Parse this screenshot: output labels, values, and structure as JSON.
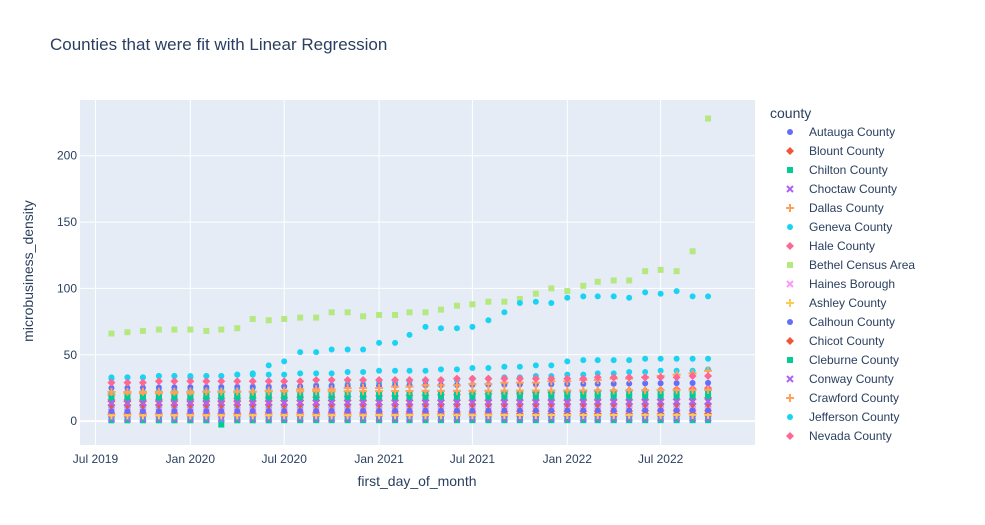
{
  "chart_data": {
    "type": "scatter",
    "title": "Counties that were fit with Linear Regression",
    "xlabel": "first_day_of_month",
    "ylabel": "microbusiness_density",
    "x_range": [
      "2019-06-01",
      "2022-12-31"
    ],
    "ylim": [
      -18,
      242
    ],
    "x_ticks": [
      {
        "date": "2019-07-01",
        "label": "Jul 2019"
      },
      {
        "date": "2020-01-01",
        "label": "Jan 2020"
      },
      {
        "date": "2020-07-01",
        "label": "Jul 2020"
      },
      {
        "date": "2021-01-01",
        "label": "Jan 2021"
      },
      {
        "date": "2021-07-01",
        "label": "Jul 2021"
      },
      {
        "date": "2022-01-01",
        "label": "Jan 2022"
      },
      {
        "date": "2022-07-01",
        "label": "Jul 2022"
      }
    ],
    "y_ticks": [
      0,
      50,
      100,
      150,
      200
    ],
    "grid": true,
    "background": "#e5ecf6",
    "legend": {
      "title": "county",
      "placement": "right"
    },
    "x": [
      "2019-08-01",
      "2019-09-01",
      "2019-10-01",
      "2019-11-01",
      "2019-12-01",
      "2020-01-01",
      "2020-02-01",
      "2020-03-01",
      "2020-04-01",
      "2020-05-01",
      "2020-06-01",
      "2020-07-01",
      "2020-08-01",
      "2020-09-01",
      "2020-10-01",
      "2020-11-01",
      "2020-12-01",
      "2021-01-01",
      "2021-02-01",
      "2021-03-01",
      "2021-04-01",
      "2021-05-01",
      "2021-06-01",
      "2021-07-01",
      "2021-08-01",
      "2021-09-01",
      "2021-10-01",
      "2021-11-01",
      "2021-12-01",
      "2022-01-01",
      "2022-02-01",
      "2022-03-01",
      "2022-04-01",
      "2022-05-01",
      "2022-06-01",
      "2022-07-01",
      "2022-08-01",
      "2022-09-01",
      "2022-10-01"
    ],
    "series": [
      {
        "name": "Autauga County",
        "color": "#636efa",
        "symbol": "circle",
        "values": [
          3.0,
          2.9,
          3.0,
          2.9,
          3.0,
          2.9,
          2.9,
          3.0,
          3.0,
          3.1,
          3.1,
          3.2,
          3.3,
          3.3,
          3.3,
          3.3,
          3.3,
          3.4,
          3.4,
          3.4,
          3.4,
          3.4,
          3.4,
          3.4,
          3.4,
          3.4,
          3.4,
          3.4,
          3.4,
          3.4,
          3.4,
          3.4,
          3.4,
          3.4,
          3.5,
          3.5,
          3.5,
          3.5,
          3.5
        ]
      },
      {
        "name": "Blount County",
        "color": "#ef553b",
        "symbol": "diamond",
        "values": [
          15.0,
          15.0,
          15.0,
          15.2,
          15.2,
          15.0,
          15.0,
          14.9,
          15.0,
          15.2,
          15.2,
          15.4,
          15.4,
          15.5,
          15.5,
          15.5,
          15.5,
          15.6,
          15.6,
          15.6,
          15.6,
          15.6,
          15.7,
          15.7,
          15.7,
          15.7,
          15.8,
          15.8,
          15.8,
          15.8,
          15.9,
          16.0,
          16.0,
          16.0,
          16.1,
          16.2,
          16.4,
          16.5,
          17.5
        ]
      },
      {
        "name": "Chilton County",
        "color": "#00cc96",
        "symbol": "square",
        "values": [
          0.6,
          0.6,
          0.6,
          0.6,
          0.6,
          0.6,
          0.6,
          -2.6,
          0.6,
          0.6,
          0.6,
          0.7,
          0.7,
          0.7,
          0.7,
          0.7,
          0.7,
          0.7,
          0.7,
          0.7,
          0.7,
          0.7,
          0.7,
          0.7,
          0.7,
          0.7,
          0.7,
          0.7,
          0.7,
          0.7,
          0.7,
          0.7,
          0.7,
          0.7,
          0.7,
          0.7,
          0.7,
          0.7,
          0.7
        ]
      },
      {
        "name": "Choctaw County",
        "color": "#ab63fa",
        "symbol": "x",
        "values": [
          1.8,
          1.8,
          1.8,
          1.8,
          1.8,
          1.8,
          1.8,
          1.8,
          1.8,
          1.8,
          1.9,
          1.9,
          1.9,
          1.9,
          1.9,
          1.9,
          1.9,
          1.9,
          1.9,
          1.9,
          2.0,
          2.0,
          2.0,
          2.0,
          2.0,
          2.0,
          2.0,
          2.0,
          2.0,
          2.0,
          2.0,
          2.0,
          2.0,
          2.1,
          2.1,
          2.1,
          2.1,
          2.1,
          2.1
        ]
      },
      {
        "name": "Dallas County",
        "color": "#ffa15a",
        "symbol": "cross",
        "values": [
          20,
          21,
          21,
          21,
          21,
          21,
          22,
          22,
          22,
          22,
          23,
          23,
          24,
          24,
          24,
          25,
          25,
          25,
          26,
          26,
          27,
          27,
          27,
          28,
          28,
          29,
          29,
          29,
          30,
          30,
          31,
          31,
          32,
          32,
          33,
          34,
          35,
          36,
          38
        ]
      },
      {
        "name": "Geneva County",
        "color": "#19d3f3",
        "symbol": "circle",
        "values": [
          9.5,
          9.5,
          9.5,
          9.6,
          9.6,
          9.6,
          9.6,
          9.6,
          9.7,
          9.7,
          9.8,
          9.8,
          9.9,
          9.9,
          10.0,
          10.0,
          10.0,
          10.1,
          10.1,
          10.1,
          10.2,
          10.2,
          10.2,
          10.3,
          10.3,
          10.3,
          10.4,
          10.4,
          10.4,
          10.5,
          10.5,
          10.5,
          10.6,
          10.6,
          10.6,
          10.7,
          10.7,
          10.7,
          10.8
        ]
      },
      {
        "name": "Hale County",
        "color": "#ff6692",
        "symbol": "diamond",
        "values": [
          6,
          6,
          6,
          6,
          6,
          6,
          6,
          6,
          6,
          6,
          6.5,
          6.5,
          6.5,
          6.5,
          6.5,
          6.5,
          6.5,
          7,
          7,
          7,
          7,
          7,
          7,
          7,
          7,
          7,
          7.5,
          7.5,
          7.5,
          7.5,
          7.5,
          7.5,
          7.5,
          7.5,
          8,
          8,
          8,
          8,
          8
        ]
      },
      {
        "name": "Bethel Census Area",
        "color": "#b6e880",
        "symbol": "square",
        "values": [
          66,
          67,
          68,
          69,
          69,
          69,
          68,
          69,
          70,
          77,
          76,
          77,
          78,
          78,
          82,
          82,
          79,
          80,
          80,
          82,
          82,
          84,
          87,
          88,
          90,
          90,
          92,
          96,
          100,
          98,
          102,
          105,
          106,
          106,
          113,
          114,
          113,
          128,
          228
        ]
      },
      {
        "name": "Haines Borough",
        "color": "#ff97ff",
        "symbol": "x",
        "values": [
          10.5,
          10.5,
          10.5,
          10.6,
          10.6,
          10.6,
          10.6,
          10.7,
          10.7,
          10.7,
          10.8,
          10.8,
          10.8,
          10.9,
          10.9,
          10.9,
          11.0,
          11.0,
          11.0,
          11.1,
          11.1,
          11.1,
          11.2,
          11.2,
          11.2,
          11.3,
          11.3,
          11.3,
          11.4,
          11.4,
          11.4,
          11.5,
          11.5,
          11.5,
          11.6,
          11.6,
          11.6,
          11.7,
          11.7
        ]
      },
      {
        "name": "Ashley County",
        "color": "#fecb52",
        "symbol": "cross",
        "values": [
          4.3,
          4.3,
          4.3,
          4.3,
          4.3,
          4.3,
          4.3,
          4.3,
          4.3,
          4.4,
          4.4,
          4.4,
          4.4,
          4.4,
          4.4,
          4.4,
          4.4,
          4.5,
          4.5,
          4.5,
          4.5,
          4.5,
          4.5,
          4.5,
          4.5,
          4.6,
          4.6,
          4.6,
          4.6,
          4.6,
          4.6,
          4.6,
          4.6,
          4.7,
          4.7,
          4.7,
          4.7,
          4.7,
          4.7
        ]
      },
      {
        "name": "Calhoun County",
        "color": "#636efa",
        "symbol": "circle",
        "values": [
          7.5,
          7.5,
          7.5,
          7.5,
          7.6,
          7.6,
          7.6,
          7.6,
          7.6,
          7.7,
          7.7,
          7.7,
          7.7,
          7.7,
          7.8,
          7.8,
          7.8,
          7.8,
          7.8,
          7.9,
          7.9,
          7.9,
          7.9,
          7.9,
          8.0,
          8.0,
          8.0,
          8.0,
          8.0,
          8.1,
          8.1,
          8.1,
          8.1,
          8.1,
          8.2,
          8.2,
          8.2,
          8.2,
          8.2
        ]
      },
      {
        "name": "Chicot County",
        "color": "#ef553b",
        "symbol": "diamond",
        "values": [
          12.0,
          12.0,
          12.0,
          12.1,
          12.1,
          12.1,
          12.1,
          12.1,
          12.2,
          12.2,
          12.2,
          12.2,
          12.3,
          12.3,
          12.3,
          12.3,
          12.4,
          12.4,
          12.4,
          12.4,
          12.5,
          12.5,
          12.5,
          12.5,
          12.6,
          12.6,
          12.6,
          12.6,
          12.7,
          12.7,
          12.7,
          12.7,
          12.8,
          12.8,
          12.8,
          12.8,
          12.9,
          12.9,
          12.9
        ]
      },
      {
        "name": "Cleburne County",
        "color": "#00cc96",
        "symbol": "square",
        "values": [
          17.5,
          17.5,
          17.5,
          17.6,
          17.6,
          17.6,
          17.6,
          17.7,
          17.7,
          17.7,
          17.8,
          17.8,
          17.8,
          17.9,
          17.9,
          17.9,
          18.0,
          18.0,
          18.0,
          18.1,
          18.1,
          18.1,
          18.2,
          18.2,
          18.2,
          18.3,
          18.3,
          18.3,
          18.4,
          18.4,
          18.4,
          18.5,
          18.5,
          18.5,
          18.6,
          18.6,
          18.6,
          18.7,
          18.7
        ]
      },
      {
        "name": "Conway County",
        "color": "#ab63fa",
        "symbol": "x",
        "values": [
          13.5,
          13.5,
          13.5,
          13.6,
          13.6,
          13.6,
          13.6,
          13.7,
          13.7,
          13.7,
          13.8,
          13.8,
          13.8,
          13.9,
          13.9,
          13.9,
          14.0,
          14.0,
          14.0,
          14.1,
          14.1,
          14.1,
          14.2,
          14.2,
          14.2,
          14.3,
          14.3,
          14.3,
          14.4,
          14.4,
          14.4,
          14.5,
          14.5,
          14.5,
          14.6,
          14.6,
          14.6,
          14.7,
          14.7
        ]
      },
      {
        "name": "Crawford County",
        "color": "#ffa15a",
        "symbol": "cross",
        "values": [
          22.0,
          22.0,
          22.1,
          22.1,
          22.1,
          22.2,
          22.2,
          22.2,
          22.3,
          22.3,
          22.4,
          22.4,
          22.4,
          22.5,
          22.5,
          22.6,
          22.6,
          22.6,
          22.7,
          22.7,
          22.8,
          22.8,
          22.8,
          22.9,
          22.9,
          23.0,
          23.0,
          23.0,
          23.1,
          23.1,
          23.2,
          23.2,
          23.2,
          23.3,
          23.3,
          23.4,
          23.4,
          23.4,
          23.5
        ]
      },
      {
        "name": "Jefferson County",
        "color": "#19d3f3",
        "symbol": "circle",
        "values": [
          32,
          33,
          33,
          34,
          34,
          33,
          34,
          34,
          35,
          36,
          42,
          45,
          52,
          52,
          54,
          54,
          54,
          59,
          59,
          65,
          71,
          70,
          70,
          71,
          76,
          82,
          89,
          90,
          89,
          93,
          94,
          94,
          94,
          93,
          97,
          96,
          98,
          94,
          94
        ]
      },
      {
        "name": "Nevada County",
        "color": "#ff6692",
        "symbol": "diamond",
        "values": [
          29,
          29,
          29,
          30,
          30,
          30,
          30,
          30,
          30,
          30,
          30,
          30,
          30,
          31,
          31,
          31,
          31,
          31,
          31,
          31,
          31,
          31,
          32,
          32,
          32,
          32,
          32,
          32,
          32,
          32,
          32,
          33,
          33,
          33,
          33,
          33,
          33,
          34,
          34
        ]
      }
    ],
    "background_series": [
      {
        "color": "#19d3f3",
        "symbol": "circle",
        "values": [
          21,
          22,
          22,
          23,
          23,
          23,
          24,
          24,
          24,
          25,
          25,
          26,
          26,
          27,
          27,
          28,
          28,
          29,
          29,
          30,
          30,
          31,
          31,
          32,
          32,
          33,
          33,
          34,
          34,
          35,
          35,
          36,
          36,
          37,
          37,
          38,
          38,
          38,
          39
        ]
      },
      {
        "color": "#19d3f3",
        "symbol": "circle",
        "values": [
          33,
          33,
          33,
          34,
          34,
          34,
          34,
          34,
          35,
          35,
          35,
          35,
          36,
          36,
          36,
          37,
          37,
          38,
          38,
          38,
          38,
          39,
          39,
          40,
          40,
          41,
          41,
          42,
          42,
          45,
          46,
          46,
          46,
          46,
          47,
          47,
          47,
          47,
          47
        ]
      },
      {
        "color": "#19d3f3",
        "symbol": "circle",
        "values": [
          1.5,
          1.5,
          1.5,
          1.5,
          1.5,
          1.5,
          1.5,
          1.5,
          1.5,
          1.6,
          1.6,
          1.6,
          1.6,
          1.6,
          1.6,
          1.6,
          1.6,
          1.7,
          1.7,
          1.7,
          1.7,
          1.7,
          1.7,
          1.7,
          1.7,
          1.8,
          1.8,
          1.8,
          1.8,
          1.8,
          1.8,
          1.8,
          1.8,
          1.9,
          1.9,
          1.9,
          1.9,
          1.9,
          1.9
        ]
      },
      {
        "color": "#ef553b",
        "symbol": "diamond",
        "values": [
          5.0,
          5.0,
          5.0,
          5.0,
          5.0,
          5.0,
          5.0,
          5.1,
          5.1,
          5.1,
          5.1,
          5.1,
          5.1,
          5.2,
          5.2,
          5.2,
          5.2,
          5.2,
          5.2,
          5.3,
          5.3,
          5.3,
          5.3,
          5.3,
          5.3,
          5.4,
          5.4,
          5.4,
          5.4,
          5.4,
          5.4,
          5.5,
          5.5,
          5.5,
          5.5,
          5.5,
          5.5,
          5.6,
          5.6
        ]
      },
      {
        "color": "#ff6692",
        "symbol": "diamond",
        "values": [
          16,
          16,
          16,
          16.5,
          16.5,
          16.5,
          17,
          17,
          17,
          17.5,
          17.5,
          17.5,
          18,
          18,
          18,
          18.5,
          18.5,
          19,
          19,
          19.5,
          19.5,
          20,
          20,
          20.5,
          20.5,
          21,
          21,
          21.5,
          21.5,
          22,
          22,
          22.5,
          22.5,
          23,
          23,
          23.5,
          24,
          24.5,
          25
        ]
      },
      {
        "color": "#ff97ff",
        "symbol": "x",
        "values": [
          8.5,
          8.5,
          8.5,
          8.5,
          8.6,
          8.6,
          8.6,
          8.6,
          8.6,
          8.7,
          8.7,
          8.7,
          8.7,
          8.7,
          8.8,
          8.8,
          8.8,
          8.8,
          8.8,
          8.9,
          8.9,
          8.9,
          8.9,
          8.9,
          9.0,
          9.0,
          9.0,
          9.0,
          9.0,
          9.1,
          9.1,
          9.1,
          9.1,
          9.1,
          9.2,
          9.2,
          9.2,
          9.2,
          9.2
        ]
      },
      {
        "color": "#00cc96",
        "symbol": "square",
        "values": [
          19.5,
          19.5,
          19.6,
          19.6,
          19.7,
          19.7,
          19.8,
          19.8,
          19.9,
          19.9,
          20.0,
          20.0,
          20.1,
          20.1,
          20.2,
          20.2,
          20.3,
          20.3,
          20.4,
          20.4,
          20.5,
          20.5,
          20.6,
          20.6,
          20.7,
          20.7,
          20.8,
          20.8,
          20.9,
          20.9,
          21.0,
          21.0,
          21.1,
          21.1,
          21.2,
          21.2,
          21.3,
          21.3,
          21.4
        ]
      },
      {
        "color": "#636efa",
        "symbol": "circle",
        "values": [
          25.0,
          25.1,
          25.2,
          25.3,
          25.4,
          25.5,
          25.6,
          25.7,
          25.8,
          25.9,
          26.0,
          26.1,
          26.2,
          26.3,
          26.4,
          26.5,
          26.6,
          26.7,
          26.8,
          26.9,
          27.0,
          27.1,
          27.2,
          27.3,
          27.4,
          27.5,
          27.6,
          27.7,
          27.8,
          27.9,
          28.0,
          28.1,
          28.2,
          28.3,
          28.4,
          28.5,
          28.6,
          28.7,
          28.8
        ]
      }
    ]
  }
}
